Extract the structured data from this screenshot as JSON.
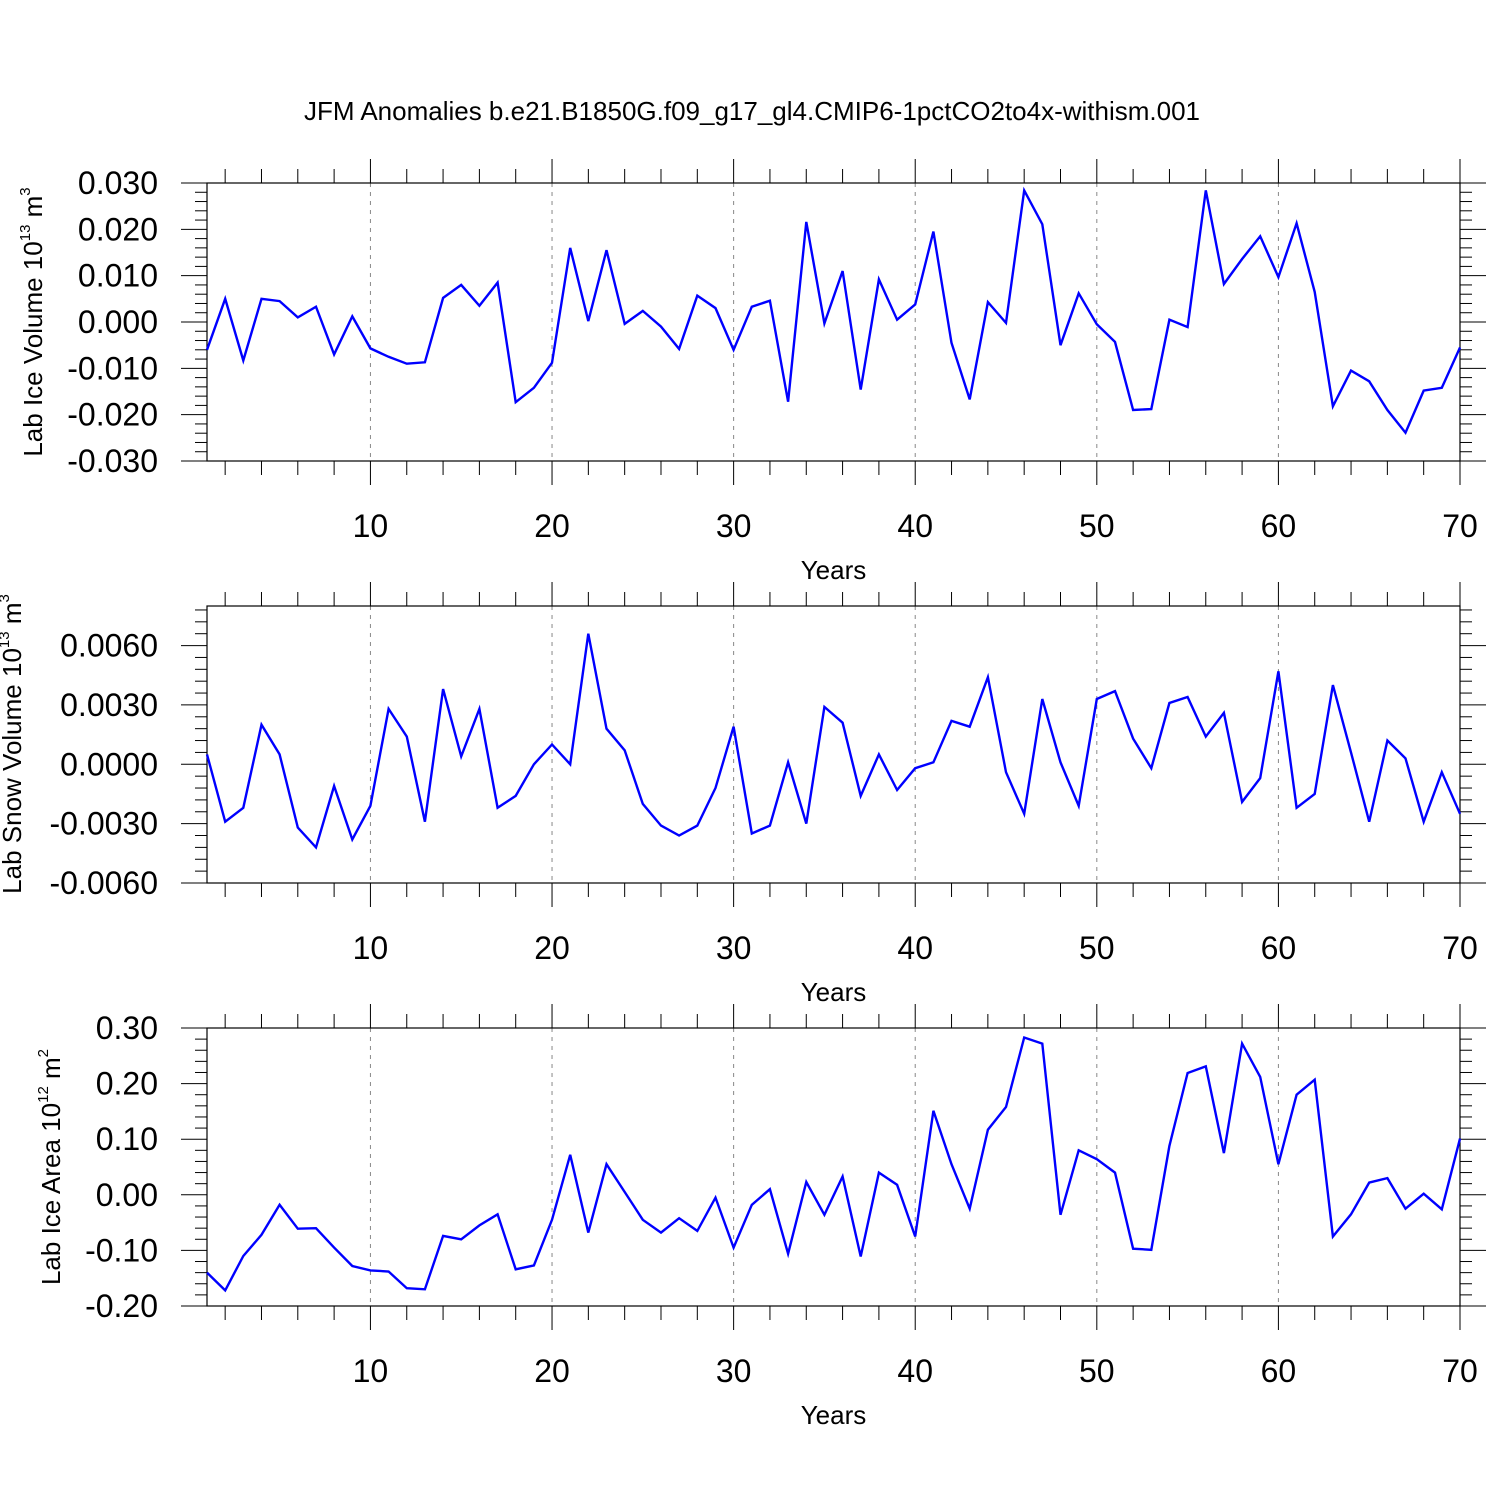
{
  "figure_title": "JFM Anomalies b.e21.B1850G.f09_g17_gl4.CMIP6-1pctCO2to4x-withism.001",
  "chart_data": [
    {
      "type": "line",
      "ylabel": {
        "pre": "Lab Ice Volume 10",
        "exp": "13",
        "mid": " m",
        "unit_exp": "3"
      },
      "xlabel": "Years",
      "xlim": [
        1,
        70
      ],
      "ylim": [
        -0.03,
        0.03
      ],
      "xticks": [
        10,
        20,
        30,
        40,
        50,
        60,
        70
      ],
      "yticks": [
        -0.03,
        -0.02,
        -0.01,
        0.0,
        0.01,
        0.02,
        0.03
      ],
      "ytick_labels": [
        "-0.030",
        "-0.020",
        "-0.010",
        "0.000",
        "0.010",
        "0.020",
        "0.030"
      ],
      "grid": "vertical dashed at major x ticks",
      "line_color": "#0000ff",
      "x": [
        1,
        2,
        3,
        4,
        5,
        6,
        7,
        8,
        9,
        10,
        11,
        12,
        13,
        14,
        15,
        16,
        17,
        18,
        19,
        20,
        21,
        22,
        23,
        24,
        25,
        26,
        27,
        28,
        29,
        30,
        31,
        32,
        33,
        34,
        35,
        36,
        37,
        38,
        39,
        40,
        41,
        42,
        43,
        44,
        45,
        46,
        47,
        48,
        49,
        50,
        51,
        52,
        53,
        54,
        55,
        56,
        57,
        58,
        59,
        60,
        61,
        62,
        63,
        64,
        65,
        66,
        67,
        68,
        69,
        70
      ],
      "values": [
        -0.006,
        0.005,
        -0.0083,
        0.005,
        0.0045,
        0.001,
        0.0033,
        -0.007,
        0.0012,
        -0.0057,
        -0.0075,
        -0.009,
        -0.0087,
        0.0052,
        0.008,
        0.0035,
        0.0085,
        -0.0173,
        -0.0142,
        -0.0088,
        0.016,
        0.0002,
        0.0155,
        -0.0004,
        0.0024,
        -0.001,
        -0.0058,
        0.0057,
        0.003,
        -0.006,
        0.0033,
        0.0046,
        -0.0172,
        0.0216,
        -0.0003,
        0.011,
        -0.0146,
        0.0092,
        0.0005,
        0.0038,
        0.0195,
        -0.0045,
        -0.0167,
        0.0043,
        -0.0002,
        0.0284,
        0.0211,
        -0.005,
        0.0062,
        -0.0005,
        -0.0043,
        -0.019,
        -0.0188,
        0.0005,
        -0.0011,
        0.0284,
        0.0082,
        0.0136,
        0.0185,
        0.0097,
        0.0213,
        0.0065,
        -0.0182,
        -0.0105,
        -0.0128,
        -0.019,
        -0.0239,
        -0.0148,
        -0.0142,
        -0.0055
      ]
    },
    {
      "type": "line",
      "ylabel": {
        "pre": "Lab Snow Volume 10",
        "exp": "13",
        "mid": " m",
        "unit_exp": "3"
      },
      "xlabel": "Years",
      "xlim": [
        1,
        70
      ],
      "ylim": [
        -0.006,
        0.008
      ],
      "xticks": [
        10,
        20,
        30,
        40,
        50,
        60,
        70
      ],
      "yticks": [
        -0.006,
        -0.003,
        0.0,
        0.003,
        0.006
      ],
      "ytick_labels": [
        "-0.0060",
        "-0.0030",
        "0.0000",
        "0.0030",
        "0.0060"
      ],
      "grid": "vertical dashed at major x ticks",
      "line_color": "#0000ff",
      "x": [
        1,
        2,
        3,
        4,
        5,
        6,
        7,
        8,
        9,
        10,
        11,
        12,
        13,
        14,
        15,
        16,
        17,
        18,
        19,
        20,
        21,
        22,
        23,
        24,
        25,
        26,
        27,
        28,
        29,
        30,
        31,
        32,
        33,
        34,
        35,
        36,
        37,
        38,
        39,
        40,
        41,
        42,
        43,
        44,
        45,
        46,
        47,
        48,
        49,
        50,
        51,
        52,
        53,
        54,
        55,
        56,
        57,
        58,
        59,
        60,
        61,
        62,
        63,
        64,
        65,
        66,
        67,
        68,
        69,
        70
      ],
      "values": [
        0.0005,
        -0.0029,
        -0.0022,
        0.002,
        0.0005,
        -0.0032,
        -0.0042,
        -0.0011,
        -0.0038,
        -0.0021,
        0.0028,
        0.0014,
        -0.0029,
        0.0038,
        0.0004,
        0.0028,
        -0.0022,
        -0.0016,
        0.0,
        0.001,
        0.0,
        0.0066,
        0.0018,
        0.0007,
        -0.002,
        -0.0031,
        -0.0036,
        -0.0031,
        -0.0012,
        0.0019,
        -0.0035,
        -0.0031,
        0.0001,
        -0.003,
        0.0029,
        0.0021,
        -0.0016,
        0.0005,
        -0.0013,
        -0.0002,
        0.0001,
        0.0022,
        0.0019,
        0.0044,
        -0.0004,
        -0.0025,
        0.0033,
        0.0001,
        -0.0021,
        0.0033,
        0.0037,
        0.0013,
        -0.0002,
        0.0031,
        0.0034,
        0.0014,
        0.0026,
        -0.0019,
        -0.0007,
        0.0047,
        -0.0022,
        -0.0015,
        0.004,
        0.0006,
        -0.0029,
        0.0012,
        0.0003,
        -0.0029,
        -0.0004,
        -0.0025
      ]
    },
    {
      "type": "line",
      "ylabel": {
        "pre": "Lab Ice Area 10",
        "exp": "12",
        "mid": " m",
        "unit_exp": "2"
      },
      "xlabel": "Years",
      "xlim": [
        1,
        70
      ],
      "ylim": [
        -0.2,
        0.3
      ],
      "xticks": [
        10,
        20,
        30,
        40,
        50,
        60,
        70
      ],
      "yticks": [
        -0.2,
        -0.1,
        0.0,
        0.1,
        0.2,
        0.3
      ],
      "ytick_labels": [
        "-0.20",
        "-0.10",
        "0.00",
        "0.10",
        "0.20",
        "0.30"
      ],
      "grid": "vertical dashed at major x ticks",
      "line_color": "#0000ff",
      "x": [
        1,
        2,
        3,
        4,
        5,
        6,
        7,
        8,
        9,
        10,
        11,
        12,
        13,
        14,
        15,
        16,
        17,
        18,
        19,
        20,
        21,
        22,
        23,
        24,
        25,
        26,
        27,
        28,
        29,
        30,
        31,
        32,
        33,
        34,
        35,
        36,
        37,
        38,
        39,
        40,
        41,
        42,
        43,
        44,
        45,
        46,
        47,
        48,
        49,
        50,
        51,
        52,
        53,
        54,
        55,
        56,
        57,
        58,
        59,
        60,
        61,
        62,
        63,
        64,
        65,
        66,
        67,
        68,
        69,
        70
      ],
      "values": [
        -0.14,
        -0.172,
        -0.11,
        -0.072,
        -0.018,
        -0.061,
        -0.06,
        -0.095,
        -0.128,
        -0.136,
        -0.138,
        -0.168,
        -0.17,
        -0.074,
        -0.08,
        -0.055,
        -0.035,
        -0.134,
        -0.127,
        -0.045,
        0.072,
        -0.068,
        0.055,
        0.005,
        -0.045,
        -0.068,
        -0.042,
        -0.065,
        -0.005,
        -0.095,
        -0.018,
        0.01,
        -0.106,
        0.023,
        -0.036,
        0.033,
        -0.111,
        0.04,
        0.018,
        -0.075,
        0.151,
        0.055,
        -0.025,
        0.117,
        0.158,
        0.283,
        0.272,
        -0.036,
        0.08,
        0.064,
        0.04,
        -0.097,
        -0.099,
        0.088,
        0.219,
        0.231,
        0.075,
        0.272,
        0.212,
        0.055,
        0.18,
        0.207,
        -0.075,
        -0.035,
        0.022,
        0.03,
        -0.025,
        0.002,
        -0.026,
        0.101
      ]
    }
  ]
}
